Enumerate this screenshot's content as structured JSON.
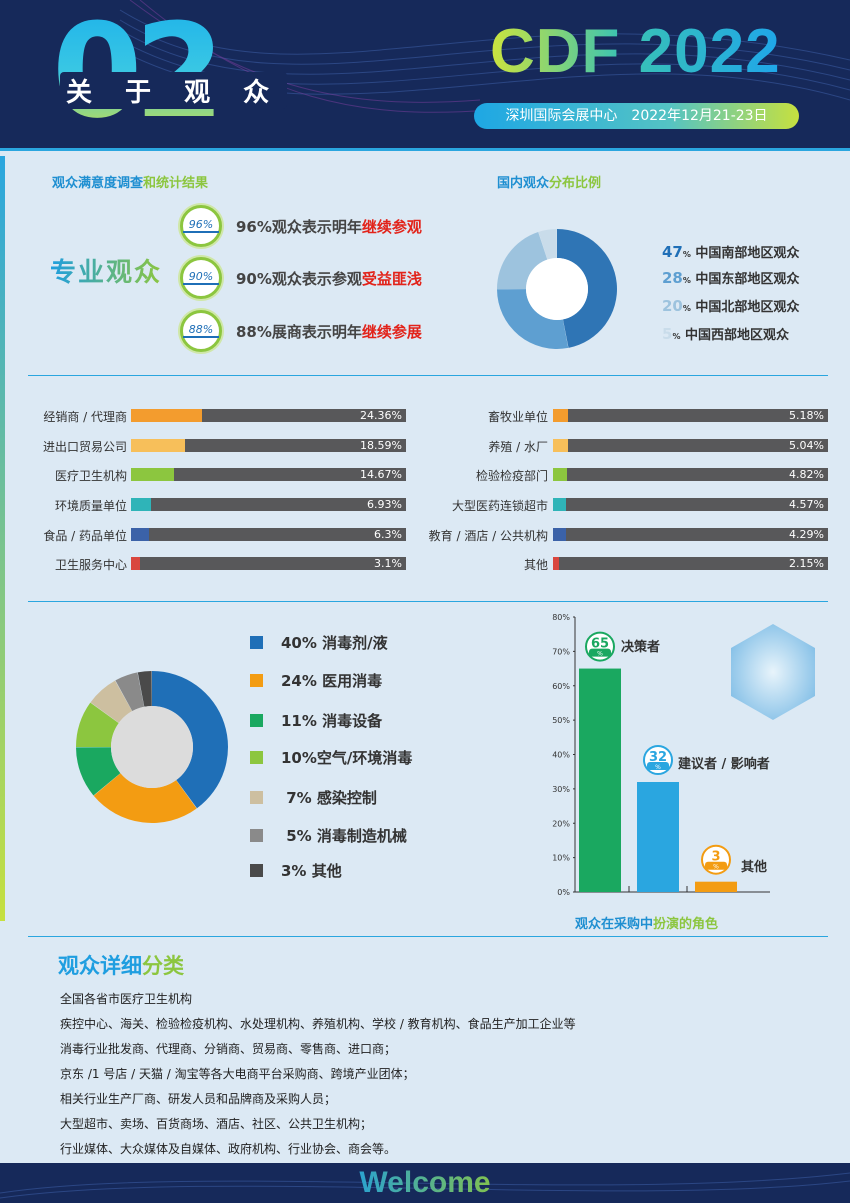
{
  "header": {
    "number": "02",
    "subtitle": "关 于 观 众",
    "brand": "CDF 2022",
    "venue": "深圳国际会展中心　2022年12月21-23日"
  },
  "satisfaction": {
    "title_a": "观众满意度调查",
    "title_b": "和统计结果",
    "label": "专业观众",
    "items": [
      {
        "badge": "96%",
        "text": "96%观众表示明年",
        "highlight": "继续参观"
      },
      {
        "badge": "90%",
        "text": "90%观众表示参观",
        "highlight": "受益匪浅"
      },
      {
        "badge": "88%",
        "text": "88%展商表示明年",
        "highlight": "继续参展"
      }
    ]
  },
  "domestic": {
    "title_a": "国内观众",
    "title_b": "分布比例",
    "items": [
      {
        "pct": "47",
        "unit": "%",
        "label": "中国南部地区观众",
        "value": 47,
        "color": "#2f75b5"
      },
      {
        "pct": "28",
        "unit": "%",
        "label": "中国东部地区观众",
        "value": 28,
        "color": "#5e9fd1"
      },
      {
        "pct": "20",
        "unit": "%",
        "label": "中国北部地区观众",
        "value": 20,
        "color": "#9dc3de"
      },
      {
        "pct": "5",
        "unit": "%",
        "label": "中国西部地区观众",
        "value": 5,
        "color": "#c9dcea"
      }
    ]
  },
  "industry_left": [
    {
      "label": "经销商 / 代理商",
      "value": 24.36,
      "display": "24.36%",
      "color": "#f39c2e"
    },
    {
      "label": "进出口贸易公司",
      "value": 18.59,
      "display": "18.59%",
      "color": "#f7bf5a"
    },
    {
      "label": "医疗卫生机构",
      "value": 14.67,
      "display": "14.67%",
      "color": "#8cc63f"
    },
    {
      "label": "环境质量单位",
      "value": 6.93,
      "display": "6.93%",
      "color": "#2fb4b8"
    },
    {
      "label": "食品 / 药品单位",
      "value": 6.3,
      "display": "6.3%",
      "color": "#3b62a8"
    },
    {
      "label": "卫生服务中心",
      "value": 3.1,
      "display": "3.1%",
      "color": "#d9473f"
    }
  ],
  "industry_right": [
    {
      "label": "畜牧业单位",
      "value": 5.18,
      "display": "5.18%",
      "color": "#f39c2e"
    },
    {
      "label": "养殖 / 水厂",
      "value": 5.04,
      "display": "5.04%",
      "color": "#f7bf5a"
    },
    {
      "label": "检验检疫部门",
      "value": 4.82,
      "display": "4.82%",
      "color": "#8cc63f"
    },
    {
      "label": "大型医药连锁超市",
      "value": 4.57,
      "display": "4.57%",
      "color": "#2fb4b8"
    },
    {
      "label": "教育 / 酒店 / 公共机构",
      "value": 4.29,
      "display": "4.29%",
      "color": "#3b62a8"
    },
    {
      "label": "其他",
      "value": 2.15,
      "display": "2.15%",
      "color": "#d9473f"
    }
  ],
  "products": [
    {
      "text": "40% 消毒剂/液",
      "value": 40,
      "color": "#1f6fb7"
    },
    {
      "text": "24% 医用消毒",
      "value": 24,
      "color": "#f39c12"
    },
    {
      "text": "11% 消毒设备",
      "value": 11,
      "color": "#1aa860"
    },
    {
      "text": "10%空气/环境消毒",
      "value": 10,
      "color": "#8cc63f"
    },
    {
      "text": " 7% 感染控制",
      "value": 7,
      "color": "#cdbfa0"
    },
    {
      "text": " 5% 消毒制造机械",
      "value": 5,
      "color": "#8a8a8a"
    },
    {
      "text": "3% 其他",
      "value": 3,
      "color": "#4a4a4a"
    }
  ],
  "roles": {
    "caption_a": "观众在采购中",
    "caption_b": "扮演的角色",
    "chart_data": {
      "type": "bar",
      "categories": [
        "决策者",
        "建议者 / 影响者",
        "其他"
      ],
      "values": [
        65,
        32,
        3
      ],
      "unit": "%",
      "colors": [
        "#1aa860",
        "#2aa6e0",
        "#f39c12"
      ],
      "ylim": [
        0,
        80
      ],
      "yticks": [
        "0%",
        "10%",
        "20%",
        "30%",
        "40%",
        "50%",
        "60%",
        "70%",
        "80%"
      ]
    }
  },
  "detail": {
    "title_a": "观众详细",
    "title_b": "分类",
    "lines": [
      "全国各省市医疗卫生机构",
      "疾控中心、海关、检验检疫机构、水处理机构、养殖机构、学校 / 教育机构、食品生产加工企业等",
      "消毒行业批发商、代理商、分销商、贸易商、零售商、进口商；",
      "京东 /1 号店 / 天猫 / 淘宝等各大电商平台采购商、跨境产业团体；",
      "相关行业生产厂商、研发人员和品牌商及采购人员；",
      "大型超市、卖场、百货商场、酒店、社区、公共卫生机构；",
      "行业媒体、大众媒体及自媒体、政府机构、行业协会、商会等。"
    ]
  },
  "footer": {
    "welcome": "Welcome"
  }
}
